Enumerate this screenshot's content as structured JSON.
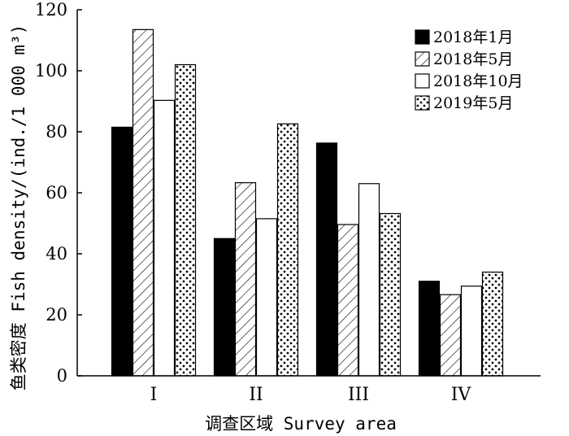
{
  "chart_data": {
    "type": "bar",
    "categories": [
      "I",
      "II",
      "III",
      "IV"
    ],
    "series": [
      {
        "name": "2018年1月",
        "values": [
          81.5,
          45,
          76.3,
          31
        ],
        "pattern": "solid-black"
      },
      {
        "name": "2018年5月",
        "values": [
          113.5,
          63.3,
          49.6,
          26.6
        ],
        "pattern": "diagonal-hatch"
      },
      {
        "name": "2018年10月",
        "values": [
          90.3,
          51.5,
          63,
          29.4
        ],
        "pattern": "white"
      },
      {
        "name": "2019年5月",
        "values": [
          102,
          82.6,
          53.2,
          34
        ],
        "pattern": "dotted"
      }
    ],
    "xlabel": "调查区域 Survey area",
    "ylabel": "鱼类密度 Fish density/(ind./1 000 m³)",
    "ylim": [
      0,
      120
    ],
    "yticks": [
      "0",
      "20",
      "40",
      "60",
      "80",
      "100",
      "120"
    ],
    "legend_position": "top-right",
    "grid": false
  }
}
